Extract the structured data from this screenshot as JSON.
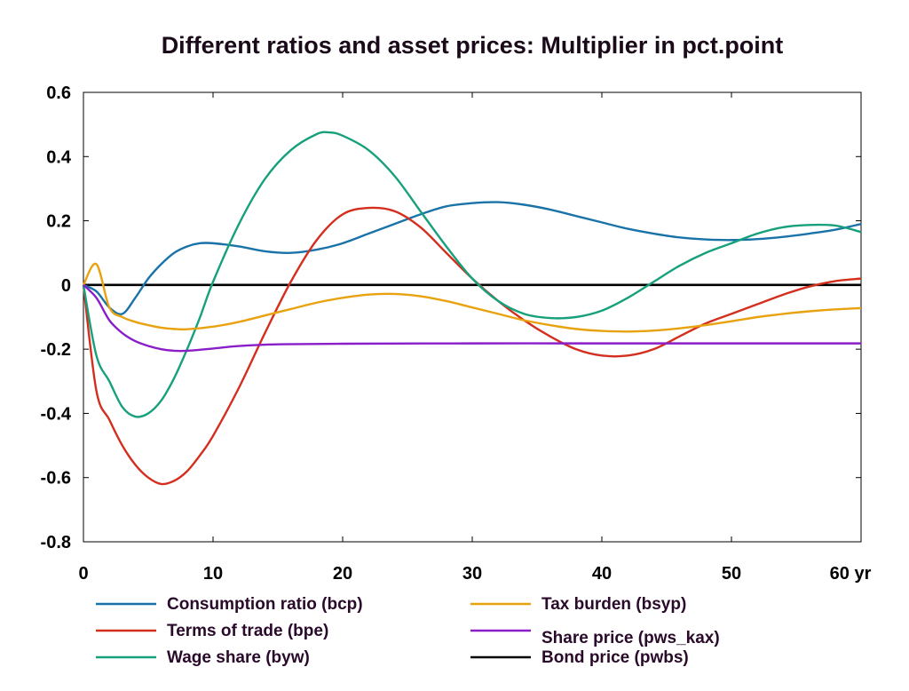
{
  "chart_data": {
    "type": "line",
    "title": "Different ratios and asset prices: Multiplier in pct.point",
    "x_unit_label": "yr",
    "xlim": [
      0,
      60
    ],
    "ylim": [
      -0.8,
      0.6
    ],
    "x_ticks": [
      0,
      10,
      20,
      30,
      40,
      50,
      60
    ],
    "y_ticks": [
      0.6,
      0.4,
      0.2,
      0,
      -0.2,
      -0.4,
      -0.6,
      -0.8
    ],
    "y_tick_labels": [
      "0.6",
      "0.4",
      "0.2",
      "0",
      "-0.2",
      "-0.4",
      "-0.6",
      "-0.8"
    ],
    "x_tick_labels": [
      "0",
      "10",
      "20",
      "30",
      "40",
      "50",
      "60 yr"
    ],
    "grid": false,
    "legend_position": "bottom",
    "series": [
      {
        "name": "Consumption ratio (bcp)",
        "color": "#1a73a8",
        "points": [
          [
            0,
            0
          ],
          [
            1,
            -0.02
          ],
          [
            2,
            -0.07
          ],
          [
            3,
            -0.09
          ],
          [
            4,
            -0.04
          ],
          [
            5,
            0.02
          ],
          [
            6,
            0.065
          ],
          [
            7,
            0.1
          ],
          [
            8,
            0.12
          ],
          [
            9,
            0.13
          ],
          [
            10,
            0.13
          ],
          [
            12,
            0.12
          ],
          [
            14,
            0.105
          ],
          [
            16,
            0.1
          ],
          [
            18,
            0.11
          ],
          [
            20,
            0.13
          ],
          [
            22,
            0.16
          ],
          [
            24,
            0.19
          ],
          [
            26,
            0.22
          ],
          [
            28,
            0.245
          ],
          [
            30,
            0.255
          ],
          [
            32,
            0.258
          ],
          [
            34,
            0.25
          ],
          [
            36,
            0.235
          ],
          [
            38,
            0.215
          ],
          [
            40,
            0.195
          ],
          [
            42,
            0.175
          ],
          [
            44,
            0.16
          ],
          [
            46,
            0.148
          ],
          [
            48,
            0.142
          ],
          [
            50,
            0.14
          ],
          [
            52,
            0.143
          ],
          [
            54,
            0.15
          ],
          [
            56,
            0.16
          ],
          [
            58,
            0.172
          ],
          [
            60,
            0.19
          ]
        ]
      },
      {
        "name": "Terms of trade (bpe)",
        "color": "#d42e1e",
        "points": [
          [
            0,
            0
          ],
          [
            1,
            -0.33
          ],
          [
            2,
            -0.42
          ],
          [
            3,
            -0.5
          ],
          [
            4,
            -0.56
          ],
          [
            5,
            -0.6
          ],
          [
            6,
            -0.62
          ],
          [
            7,
            -0.61
          ],
          [
            8,
            -0.58
          ],
          [
            9,
            -0.53
          ],
          [
            10,
            -0.47
          ],
          [
            12,
            -0.32
          ],
          [
            14,
            -0.15
          ],
          [
            16,
            0.01
          ],
          [
            18,
            0.14
          ],
          [
            20,
            0.22
          ],
          [
            22,
            0.24
          ],
          [
            24,
            0.23
          ],
          [
            26,
            0.18
          ],
          [
            28,
            0.1
          ],
          [
            30,
            0.02
          ],
          [
            32,
            -0.05
          ],
          [
            34,
            -0.11
          ],
          [
            36,
            -0.16
          ],
          [
            38,
            -0.2
          ],
          [
            40,
            -0.22
          ],
          [
            42,
            -0.22
          ],
          [
            44,
            -0.2
          ],
          [
            46,
            -0.16
          ],
          [
            48,
            -0.12
          ],
          [
            50,
            -0.09
          ],
          [
            52,
            -0.06
          ],
          [
            54,
            -0.03
          ],
          [
            56,
            -0.005
          ],
          [
            58,
            0.012
          ],
          [
            60,
            0.02
          ]
        ]
      },
      {
        "name": "Wage share (byw)",
        "color": "#17a07c",
        "points": [
          [
            0,
            0
          ],
          [
            1,
            -0.22
          ],
          [
            2,
            -0.3
          ],
          [
            3,
            -0.38
          ],
          [
            4,
            -0.41
          ],
          [
            5,
            -0.4
          ],
          [
            6,
            -0.36
          ],
          [
            7,
            -0.29
          ],
          [
            8,
            -0.2
          ],
          [
            9,
            -0.1
          ],
          [
            10,
            0.01
          ],
          [
            12,
            0.19
          ],
          [
            14,
            0.33
          ],
          [
            16,
            0.42
          ],
          [
            18,
            0.47
          ],
          [
            19,
            0.475
          ],
          [
            20,
            0.465
          ],
          [
            22,
            0.42
          ],
          [
            24,
            0.34
          ],
          [
            26,
            0.23
          ],
          [
            28,
            0.12
          ],
          [
            30,
            0.02
          ],
          [
            32,
            -0.05
          ],
          [
            34,
            -0.09
          ],
          [
            36,
            -0.103
          ],
          [
            38,
            -0.1
          ],
          [
            40,
            -0.08
          ],
          [
            42,
            -0.04
          ],
          [
            44,
            0.01
          ],
          [
            46,
            0.06
          ],
          [
            48,
            0.1
          ],
          [
            50,
            0.13
          ],
          [
            52,
            0.16
          ],
          [
            54,
            0.18
          ],
          [
            56,
            0.187
          ],
          [
            58,
            0.185
          ],
          [
            60,
            0.165
          ]
        ]
      },
      {
        "name": "Tax burden (bsyp)",
        "color": "#e8a20f",
        "points": [
          [
            0,
            0
          ],
          [
            1,
            0.065
          ],
          [
            2,
            -0.07
          ],
          [
            3,
            -0.1
          ],
          [
            4,
            -0.115
          ],
          [
            5,
            -0.125
          ],
          [
            6,
            -0.133
          ],
          [
            7,
            -0.137
          ],
          [
            8,
            -0.138
          ],
          [
            10,
            -0.13
          ],
          [
            12,
            -0.115
          ],
          [
            14,
            -0.095
          ],
          [
            16,
            -0.075
          ],
          [
            18,
            -0.055
          ],
          [
            20,
            -0.04
          ],
          [
            22,
            -0.03
          ],
          [
            24,
            -0.028
          ],
          [
            26,
            -0.035
          ],
          [
            28,
            -0.05
          ],
          [
            30,
            -0.07
          ],
          [
            32,
            -0.09
          ],
          [
            34,
            -0.11
          ],
          [
            36,
            -0.125
          ],
          [
            38,
            -0.137
          ],
          [
            40,
            -0.143
          ],
          [
            42,
            -0.145
          ],
          [
            44,
            -0.142
          ],
          [
            46,
            -0.135
          ],
          [
            48,
            -0.125
          ],
          [
            50,
            -0.113
          ],
          [
            52,
            -0.1
          ],
          [
            54,
            -0.09
          ],
          [
            56,
            -0.082
          ],
          [
            58,
            -0.076
          ],
          [
            60,
            -0.072
          ]
        ]
      },
      {
        "name": "Share price (pws_kax)",
        "color": "#8a1ec8",
        "points": [
          [
            0,
            0
          ],
          [
            1,
            -0.04
          ],
          [
            2,
            -0.11
          ],
          [
            3,
            -0.15
          ],
          [
            4,
            -0.175
          ],
          [
            5,
            -0.19
          ],
          [
            6,
            -0.2
          ],
          [
            7,
            -0.205
          ],
          [
            8,
            -0.205
          ],
          [
            10,
            -0.198
          ],
          [
            12,
            -0.19
          ],
          [
            15,
            -0.185
          ],
          [
            20,
            -0.183
          ],
          [
            30,
            -0.182
          ],
          [
            40,
            -0.182
          ],
          [
            50,
            -0.182
          ],
          [
            60,
            -0.182
          ]
        ]
      },
      {
        "name": "Bond price (pwbs)",
        "color": "#000000",
        "points": [
          [
            0,
            0
          ],
          [
            60,
            0
          ]
        ]
      }
    ]
  }
}
